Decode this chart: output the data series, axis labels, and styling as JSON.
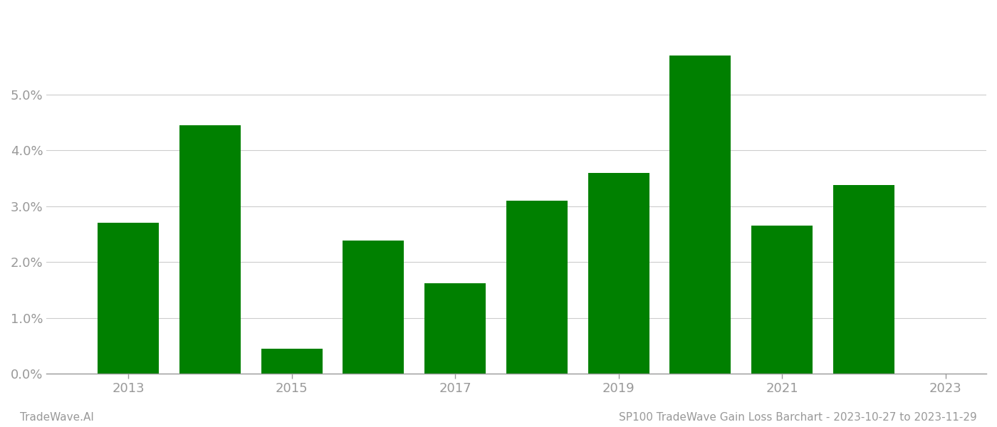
{
  "years": [
    2013,
    2014,
    2015,
    2016,
    2017,
    2018,
    2019,
    2020,
    2021,
    2022
  ],
  "x_positions": [
    0,
    1,
    2,
    3,
    4,
    5,
    6,
    7,
    8,
    9
  ],
  "values": [
    0.027,
    0.0445,
    0.0045,
    0.0238,
    0.0162,
    0.031,
    0.036,
    0.057,
    0.0265,
    0.0338
  ],
  "bar_color": "#008000",
  "bar_width": 0.75,
  "ylim": [
    0,
    0.065
  ],
  "yticks": [
    0.0,
    0.01,
    0.02,
    0.03,
    0.04,
    0.05
  ],
  "xtick_positions": [
    0,
    2,
    4,
    6,
    8,
    10
  ],
  "xtick_labels": [
    "2013",
    "2015",
    "2017",
    "2019",
    "2021",
    "2023"
  ],
  "xlim": [
    -1.0,
    10.5
  ],
  "grid_color": "#cccccc",
  "background_color": "#ffffff",
  "footer_left": "TradeWave.AI",
  "footer_right": "SP100 TradeWave Gain Loss Barchart - 2023-10-27 to 2023-11-29",
  "footer_fontsize": 11,
  "tick_fontsize": 13,
  "tick_color": "#999999",
  "spine_color": "#999999"
}
